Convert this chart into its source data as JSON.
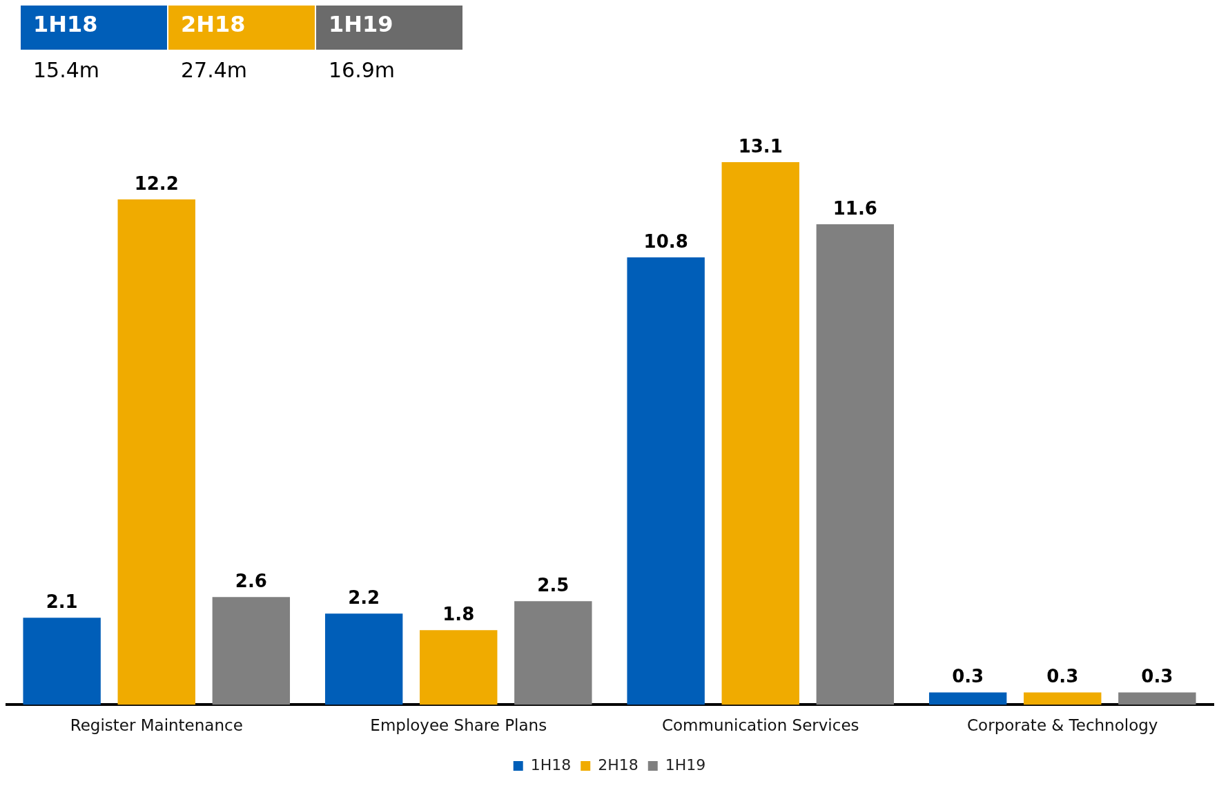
{
  "chart_data": {
    "type": "bar",
    "categories": [
      "Register Maintenance",
      "Employee Share Plans",
      "Communication Services",
      "Corporate & Technology"
    ],
    "series": [
      {
        "name": "1H18",
        "color": "#005eb8",
        "values": [
          2.1,
          2.2,
          10.8,
          0.3
        ]
      },
      {
        "name": "2H18",
        "color": "#f0ab00",
        "values": [
          12.2,
          1.8,
          13.1,
          0.3
        ]
      },
      {
        "name": "1H19",
        "color": "#808080",
        "values": [
          2.6,
          2.5,
          11.6,
          0.3
        ]
      }
    ],
    "annotations": [
      "15.4m",
      "27.4m",
      "16.9m"
    ],
    "data_labels": true,
    "grid": false,
    "legend": "bottom"
  }
}
